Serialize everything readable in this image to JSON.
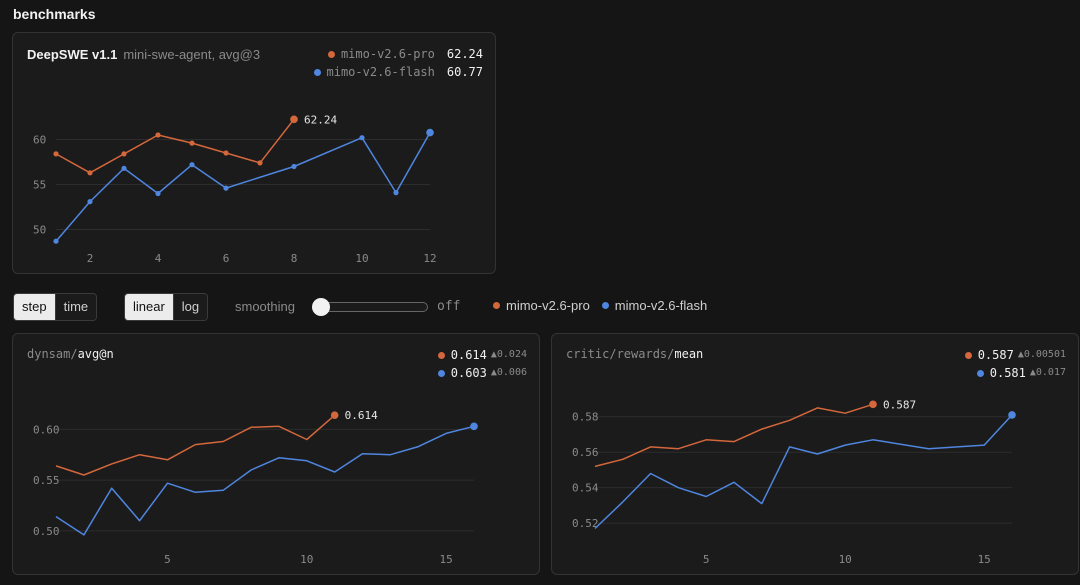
{
  "page": {
    "section_title": "benchmarks"
  },
  "colors": {
    "pro": "#d4673b",
    "flash": "#4f86e0",
    "grid": "#2d2d2d",
    "tick": "#8a8a8a",
    "label": "#e6e6e6"
  },
  "controls": {
    "axis_options": [
      "step",
      "time"
    ],
    "axis_selected": "step",
    "scale_options": [
      "linear",
      "log"
    ],
    "scale_selected": "linear",
    "smoothing_label": "smoothing",
    "smoothing_value_text": "off",
    "smoothing_level": 0,
    "legend": [
      {
        "name": "mimo-v2.6-pro",
        "color": "#d4673b"
      },
      {
        "name": "mimo-v2.6-flash",
        "color": "#4f86e0"
      }
    ]
  },
  "chart_data": [
    {
      "id": "deepswe",
      "type": "line",
      "title": "DeepSWE v1.1",
      "subtitle": "mini-swe-agent, avg@3",
      "xlim": [
        1,
        12
      ],
      "ylim": [
        48.5,
        63.5
      ],
      "xticks": [
        2,
        4,
        6,
        8,
        10,
        12
      ],
      "yticks": [
        50,
        55,
        60
      ],
      "xtick_labels": [
        "2",
        "4",
        "6",
        "8",
        "10",
        "12"
      ],
      "ytick_labels": [
        "50",
        "55",
        "60"
      ],
      "show_markers": true,
      "legend": [
        {
          "name": "mimo-v2.6-pro",
          "value": "62.24",
          "delta": ""
        },
        {
          "name": "mimo-v2.6-flash",
          "value": "60.77",
          "delta": ""
        }
      ],
      "end_label": "62.24",
      "series": [
        {
          "name": "mimo-v2.6-pro",
          "color": "#d4673b",
          "x": [
            1,
            2,
            3,
            4,
            5,
            6,
            7,
            8
          ],
          "y": [
            58.4,
            56.3,
            58.4,
            60.5,
            59.6,
            58.5,
            57.4,
            62.24
          ]
        },
        {
          "name": "mimo-v2.6-flash",
          "color": "#4f86e0",
          "x": [
            1,
            2,
            3,
            4,
            5,
            6,
            8,
            10,
            11,
            12
          ],
          "y": [
            48.7,
            53.1,
            56.8,
            54.0,
            57.2,
            54.6,
            57.0,
            60.2,
            54.1,
            60.77
          ]
        }
      ]
    },
    {
      "id": "dynsam",
      "type": "line",
      "title_parts": [
        "dynsam/",
        "avg@n"
      ],
      "xlim": [
        1,
        16
      ],
      "ylim": [
        0.49,
        0.625
      ],
      "xticks": [
        5,
        10,
        15
      ],
      "yticks": [
        0.5,
        0.55,
        0.6
      ],
      "xtick_labels": [
        "5",
        "10",
        "15"
      ],
      "ytick_labels": [
        "0.50",
        "0.55",
        "0.60"
      ],
      "show_markers": false,
      "legend": [
        {
          "name": "mimo-v2.6-pro",
          "value": "0.614",
          "delta": "▲0.024"
        },
        {
          "name": "mimo-v2.6-flash",
          "value": "0.603",
          "delta": "▲0.006"
        }
      ],
      "end_label": "0.614",
      "series": [
        {
          "name": "mimo-v2.6-pro",
          "color": "#d4673b",
          "x": [
            1,
            2,
            3,
            4,
            5,
            6,
            7,
            8,
            9,
            10,
            11
          ],
          "y": [
            0.564,
            0.555,
            0.566,
            0.575,
            0.57,
            0.585,
            0.588,
            0.602,
            0.603,
            0.59,
            0.614
          ]
        },
        {
          "name": "mimo-v2.6-flash",
          "color": "#4f86e0",
          "x": [
            1,
            2,
            3,
            4,
            5,
            6,
            7,
            8,
            9,
            10,
            11,
            12,
            13,
            14,
            15,
            16
          ],
          "y": [
            0.514,
            0.496,
            0.542,
            0.51,
            0.547,
            0.538,
            0.54,
            0.56,
            0.572,
            0.569,
            0.558,
            0.576,
            0.575,
            0.583,
            0.596,
            0.603
          ]
        }
      ]
    },
    {
      "id": "critic",
      "type": "line",
      "title_parts": [
        "critic/rewards/",
        "mean"
      ],
      "xlim": [
        1,
        16
      ],
      "ylim": [
        0.515,
        0.59
      ],
      "xticks": [
        5,
        10,
        15
      ],
      "yticks": [
        0.52,
        0.54,
        0.56,
        0.58
      ],
      "xtick_labels": [
        "5",
        "10",
        "15"
      ],
      "ytick_labels": [
        "0.52",
        "0.54",
        "0.56",
        "0.58"
      ],
      "show_markers": false,
      "legend": [
        {
          "name": "mimo-v2.6-pro",
          "value": "0.587",
          "delta": "▲0.00501"
        },
        {
          "name": "mimo-v2.6-flash",
          "value": "0.581",
          "delta": "▲0.017"
        }
      ],
      "end_label": "0.587",
      "series": [
        {
          "name": "mimo-v2.6-pro",
          "color": "#d4673b",
          "x": [
            1,
            2,
            3,
            4,
            5,
            6,
            7,
            8,
            9,
            10,
            11
          ],
          "y": [
            0.552,
            0.556,
            0.563,
            0.562,
            0.567,
            0.566,
            0.573,
            0.578,
            0.585,
            0.582,
            0.587
          ]
        },
        {
          "name": "mimo-v2.6-flash",
          "color": "#4f86e0",
          "x": [
            1,
            2,
            3,
            4,
            5,
            6,
            7,
            8,
            9,
            10,
            11,
            13,
            15,
            16
          ],
          "y": [
            0.517,
            0.532,
            0.548,
            0.54,
            0.535,
            0.543,
            0.531,
            0.563,
            0.559,
            0.564,
            0.567,
            0.562,
            0.564,
            0.581
          ]
        }
      ]
    }
  ]
}
